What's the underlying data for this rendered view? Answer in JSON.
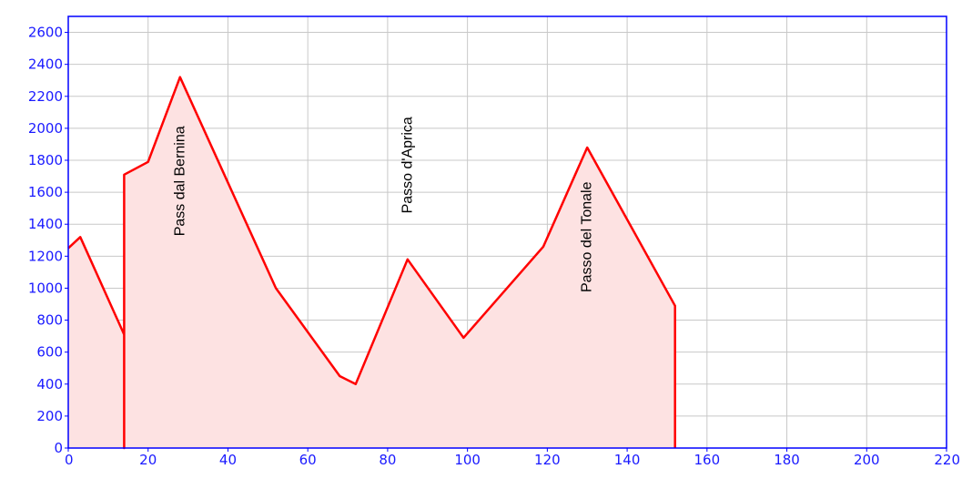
{
  "chart_data": {
    "type": "area",
    "xlim": [
      0,
      220
    ],
    "ylim": [
      0,
      2700
    ],
    "x_ticks": [
      0,
      20,
      40,
      60,
      80,
      100,
      120,
      140,
      160,
      180,
      200,
      220
    ],
    "y_ticks": [
      0,
      200,
      400,
      600,
      800,
      1000,
      1200,
      1400,
      1600,
      1800,
      2000,
      2200,
      2400,
      2600
    ],
    "x_tick_labels": [
      "0",
      "20",
      "40",
      "60",
      "80",
      "100",
      "120",
      "140",
      "160",
      "180",
      "200",
      "220"
    ],
    "y_tick_labels": [
      "0",
      "200",
      "400",
      "600",
      "800",
      "1000",
      "1200",
      "1400",
      "1600",
      "1800",
      "2000",
      "2200",
      "2400",
      "2600"
    ],
    "grid": true,
    "series": [
      {
        "x": [
          0,
          3,
          14,
          14,
          14,
          20,
          28,
          52,
          68,
          72,
          85,
          99,
          119,
          130,
          152,
          152
        ],
        "y": [
          1250,
          1320,
          710,
          0,
          1710,
          1790,
          2320,
          1000,
          450,
          400,
          1180,
          690,
          1260,
          1880,
          890,
          0
        ],
        "color": "#ff0000",
        "fill": "#fde2e2"
      }
    ],
    "annotations": [
      {
        "text": "Pass dal Bernina",
        "x": 28,
        "y": 1670,
        "rotation": -90
      },
      {
        "text": "Passo d'Aprica",
        "x": 85,
        "y": 1770,
        "rotation": -90
      },
      {
        "text": "Passo del Tonale",
        "x": 130,
        "y": 1320,
        "rotation": -90
      }
    ]
  }
}
